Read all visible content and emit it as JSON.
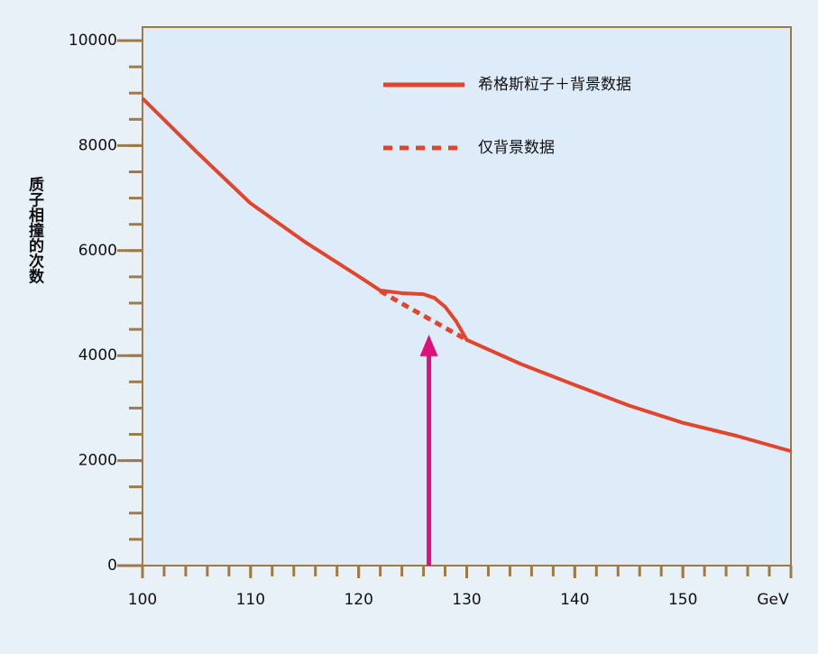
{
  "chart_data": {
    "type": "line",
    "y_label": "质子相撞的次数",
    "xlim": [
      100,
      160
    ],
    "xticks": [
      100,
      110,
      120,
      130,
      140,
      150,
      {
        "value": 160,
        "label": "GeV"
      }
    ],
    "ylim": [
      0,
      10000
    ],
    "yticks": [
      0,
      2000,
      4000,
      6000,
      8000,
      10000
    ],
    "series": [
      {
        "name": "希格斯粒子＋背景数据",
        "color": "#e2452b",
        "style": "solid",
        "x": [
          100,
          105,
          110,
          115,
          120,
          122,
          124,
          126,
          127,
          128,
          129,
          130,
          135,
          140,
          145,
          150,
          155,
          160
        ],
        "values": [
          8900,
          7880,
          6900,
          6170,
          5510,
          5240,
          5190,
          5170,
          5100,
          4930,
          4660,
          4300,
          3840,
          3440,
          3050,
          2720,
          2470,
          2180
        ]
      },
      {
        "name": "仅背景数据",
        "color": "#e2452b",
        "style": "dotted",
        "x": [
          122,
          124,
          126,
          128,
          130
        ],
        "values": [
          5230,
          4990,
          4760,
          4530,
          4300
        ]
      }
    ],
    "arrow": {
      "x": 126.5,
      "y": 4400,
      "color": "#e0107a"
    }
  }
}
